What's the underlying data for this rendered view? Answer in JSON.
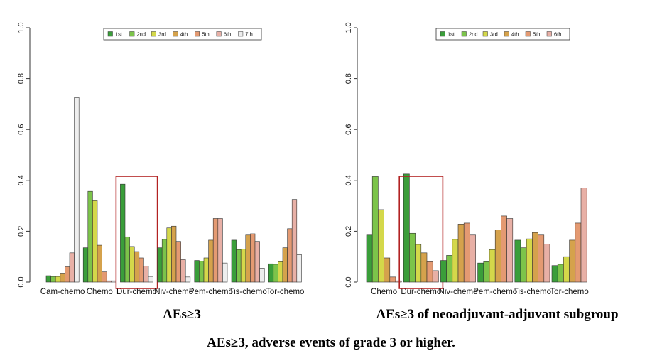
{
  "figure": {
    "caption": "AEs≥3, adverse events of grade 3 or higher."
  },
  "colors": {
    "1st": "#3a9e3a",
    "2nd": "#7cc44a",
    "3rd": "#d4d84a",
    "4th": "#d5a24c",
    "5th": "#e49a72",
    "6th": "#e8b0a6",
    "7th": "#eeeeee",
    "highlight_box": "#b22222"
  },
  "chart_data": [
    {
      "type": "bar",
      "title": "AEs≥3",
      "xlabel": "",
      "ylabel": "",
      "ylim": [
        0,
        1.0
      ],
      "yticks": [
        "0.0",
        "0.2",
        "0.4",
        "0.6",
        "0.8",
        "1.0"
      ],
      "legend_position": "top",
      "highlighted_category": "Dur-chemo",
      "categories": [
        "Cam-chemo",
        "Chemo",
        "Dur-chemo",
        "Niv-chemo",
        "Pem-chemo",
        "Tis-chemo",
        "Tor-chemo"
      ],
      "series": [
        {
          "name": "1st",
          "values": [
            0.025,
            0.135,
            0.385,
            0.135,
            0.085,
            0.165,
            0.072
          ]
        },
        {
          "name": "2nd",
          "values": [
            0.022,
            0.357,
            0.178,
            0.168,
            0.082,
            0.128,
            0.07
          ]
        },
        {
          "name": "3rd",
          "values": [
            0.022,
            0.32,
            0.14,
            0.213,
            0.095,
            0.13,
            0.08
          ]
        },
        {
          "name": "4th",
          "values": [
            0.035,
            0.145,
            0.12,
            0.22,
            0.165,
            0.185,
            0.135
          ]
        },
        {
          "name": "5th",
          "values": [
            0.06,
            0.04,
            0.095,
            0.16,
            0.25,
            0.19,
            0.21
          ]
        },
        {
          "name": "6th",
          "values": [
            0.115,
            0.005,
            0.063,
            0.088,
            0.25,
            0.16,
            0.325
          ]
        },
        {
          "name": "7th",
          "values": [
            0.725,
            0.005,
            0.022,
            0.02,
            0.075,
            0.055,
            0.108
          ]
        }
      ]
    },
    {
      "type": "bar",
      "title": "AEs≥3 of neoadjuvant-adjuvant subgroup",
      "xlabel": "",
      "ylabel": "",
      "ylim": [
        0,
        1.0
      ],
      "yticks": [
        "0.0",
        "0.2",
        "0.4",
        "0.6",
        "0.8",
        "1.0"
      ],
      "legend_position": "top",
      "highlighted_category": "Dur-chemo",
      "categories": [
        "Chemo",
        "Dur-chemo",
        "Niv-chemo",
        "Pem-chemo",
        "Tis-chemo",
        "Tor-chemo"
      ],
      "series": [
        {
          "name": "1st",
          "values": [
            0.185,
            0.425,
            0.085,
            0.075,
            0.165,
            0.065
          ]
        },
        {
          "name": "2nd",
          "values": [
            0.415,
            0.192,
            0.105,
            0.08,
            0.135,
            0.07
          ]
        },
        {
          "name": "3rd",
          "values": [
            0.285,
            0.148,
            0.168,
            0.128,
            0.17,
            0.1
          ]
        },
        {
          "name": "4th",
          "values": [
            0.095,
            0.115,
            0.228,
            0.205,
            0.195,
            0.165
          ]
        },
        {
          "name": "5th",
          "values": [
            0.02,
            0.08,
            0.232,
            0.26,
            0.185,
            0.232
          ]
        },
        {
          "name": "6th",
          "values": [
            0.005,
            0.045,
            0.185,
            0.25,
            0.15,
            0.37
          ]
        }
      ]
    }
  ]
}
